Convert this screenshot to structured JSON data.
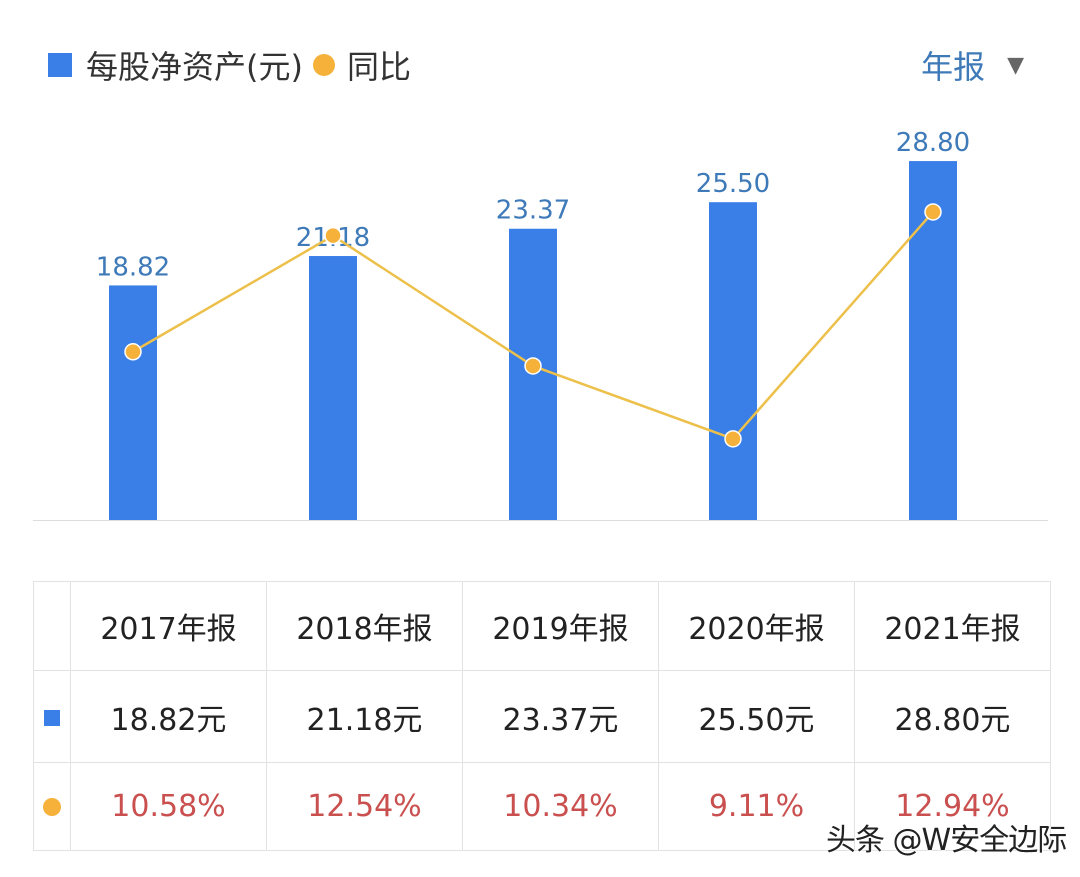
{
  "legend": {
    "bar_label": "每股净资产(元)",
    "line_label": "同比"
  },
  "period_selector": {
    "value": "年报"
  },
  "watermark": "头条 @W安全边际",
  "colors": {
    "bar": "#3a7ee8",
    "line": "#ecc04a",
    "dot": "#f5b13a",
    "bar_label": "#3f7ab8",
    "pct_text": "#c9504f"
  },
  "chart_data": {
    "type": "bar+line",
    "categories": [
      "2017年报",
      "2018年报",
      "2019年报",
      "2020年报",
      "2021年报"
    ],
    "series": [
      {
        "name": "每股净资产(元)",
        "type": "bar",
        "values": [
          18.82,
          21.18,
          23.37,
          25.5,
          28.8
        ],
        "labels": [
          "18.82",
          "21.18",
          "23.37",
          "25.50",
          "28.80"
        ]
      },
      {
        "name": "同比",
        "type": "line",
        "values": [
          10.58,
          12.54,
          10.34,
          9.11,
          12.94
        ]
      }
    ],
    "bar_ylim": [
      0,
      33.7
    ],
    "line_ylim": [
      7.74,
      14.83
    ],
    "grid": false,
    "legend_position": "top-left"
  },
  "table": {
    "headers": [
      "2017年报",
      "2018年报",
      "2019年报",
      "2020年报",
      "2021年报"
    ],
    "values": [
      "18.82元",
      "21.18元",
      "23.37元",
      "25.50元",
      "28.80元"
    ],
    "yoy": [
      "10.58%",
      "12.54%",
      "10.34%",
      "9.11%",
      "12.94%"
    ]
  }
}
